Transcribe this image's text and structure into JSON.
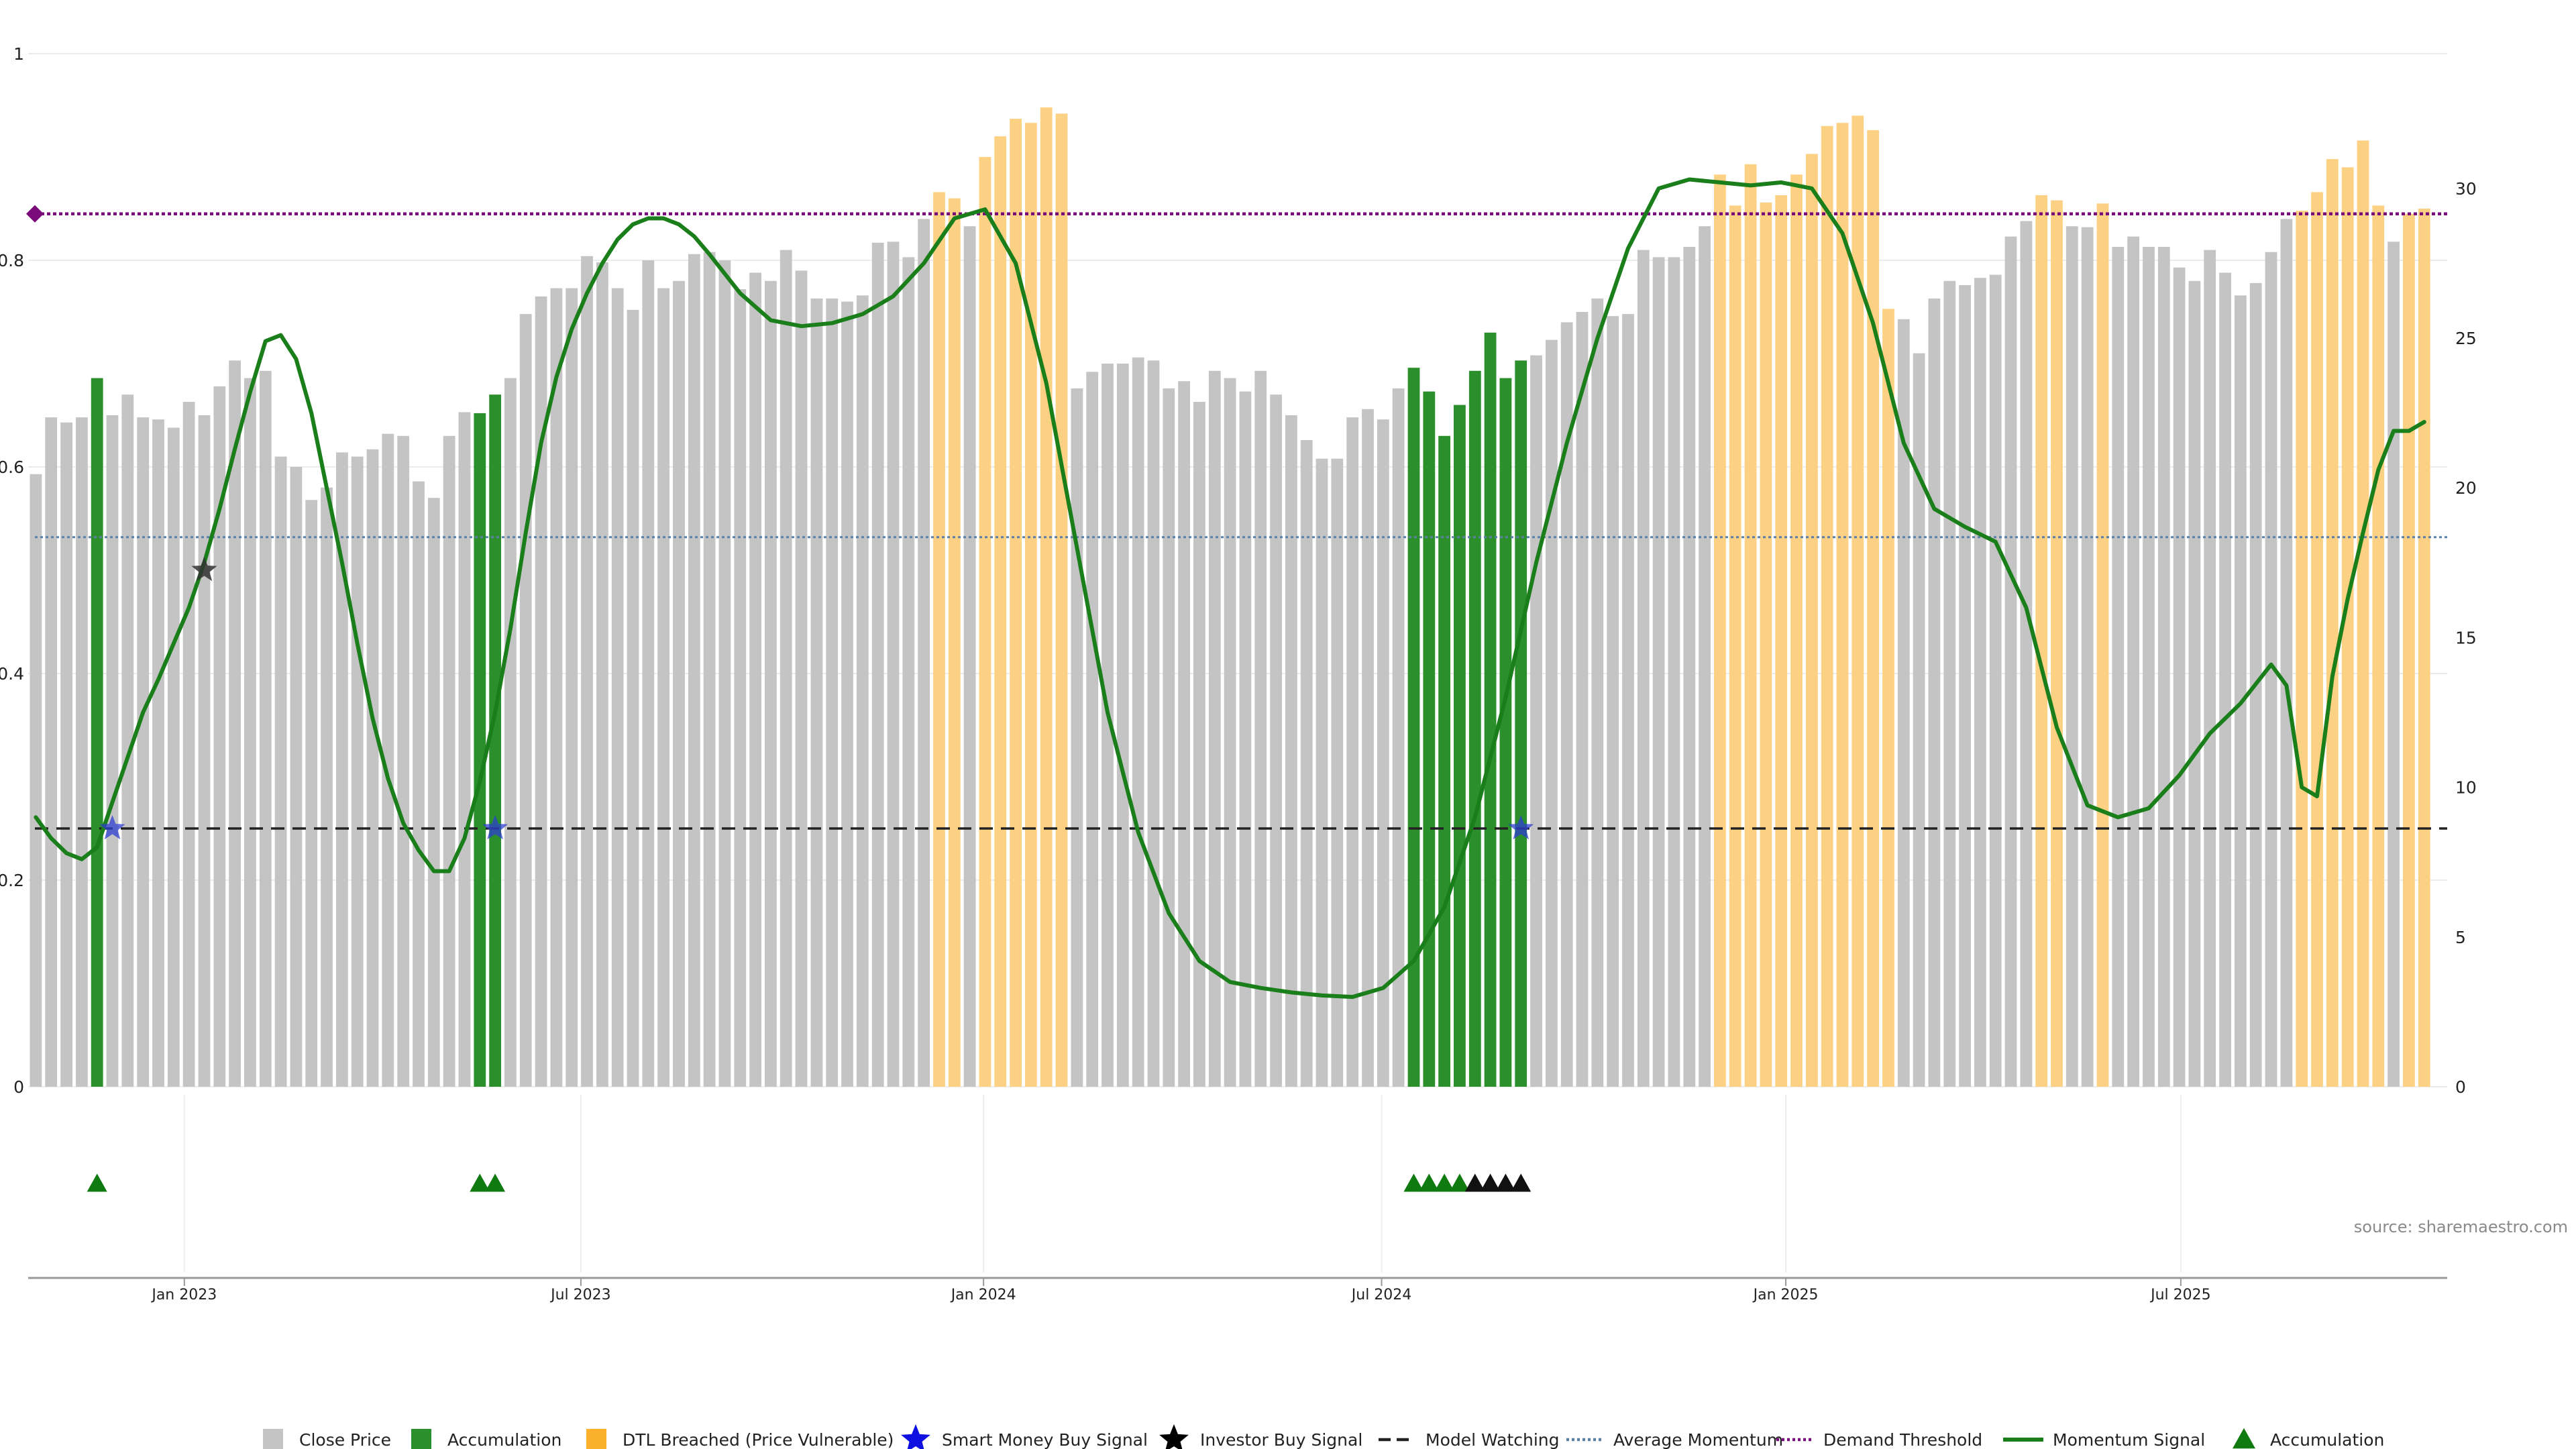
{
  "colors": {
    "close": "#c4c4c4",
    "accumulation": "#2b8f2b",
    "dtl": "#fdd183",
    "dtl_legend": "#fbb12b",
    "signal_line": "#1a7f1a",
    "avg_momentum": "#5a7fa8",
    "demand": "#7a0a7a",
    "watching": "#222222",
    "smart_star": "#2f3fd0",
    "investor_star": "#333333",
    "marker_green": "#0f7a0f",
    "marker_black": "#111111"
  },
  "chart_data": {
    "type": "bar",
    "source": "source: sharemaestro.com",
    "left_axis": {
      "ylim": [
        0,
        1
      ],
      "ticks": [
        "0",
        "0.2",
        "0.4",
        "0.6",
        "0.8",
        "1"
      ]
    },
    "right_axis": {
      "ylim": [
        0,
        34.5
      ],
      "ticks": [
        "0",
        "5",
        "10",
        "15",
        "20",
        "25",
        "30"
      ]
    },
    "x_ticks": [
      "Jan 2023",
      "Jul 2023",
      "Jan 2024",
      "Jul 2024",
      "Jan 2025",
      "Jul 2025"
    ],
    "x_tick_weeks": [
      9.7,
      35.6,
      61.9,
      87.9,
      114.3,
      140.1
    ],
    "series": [
      {
        "name": "Close Price",
        "kind": "bars",
        "values": [
          0.593,
          0.648,
          0.643,
          0.648,
          0.686,
          0.65,
          0.67,
          0.648,
          0.646,
          0.638,
          0.663,
          0.65,
          0.678,
          0.703,
          0.686,
          0.693,
          0.61,
          0.6,
          0.568,
          0.58,
          0.614,
          0.61,
          0.617,
          0.632,
          0.63,
          0.586,
          0.57,
          0.63,
          0.653,
          0.652,
          0.67,
          0.686,
          0.748,
          0.765,
          0.773,
          0.773,
          0.804,
          0.798,
          0.773,
          0.752,
          0.8,
          0.773,
          0.78,
          0.806,
          0.808,
          0.8,
          0.772,
          0.788,
          0.78,
          0.81,
          0.79,
          0.763,
          0.763,
          0.76,
          0.766,
          0.817,
          0.818,
          0.803,
          0.84,
          0.866,
          0.86,
          0.833,
          0.9,
          0.92,
          0.937,
          0.933,
          0.948,
          0.942,
          0.676,
          0.692,
          0.7,
          0.7,
          0.706,
          0.703,
          0.676,
          0.683,
          0.663,
          0.693,
          0.686,
          0.673,
          0.693,
          0.67,
          0.65,
          0.626,
          0.608,
          0.608,
          0.648,
          0.656,
          0.646,
          0.676,
          0.696,
          0.673,
          0.63,
          0.66,
          0.693,
          0.73,
          0.686,
          0.703,
          0.708,
          0.723,
          0.74,
          0.75,
          0.763,
          0.746,
          0.748,
          0.81,
          0.803,
          0.803,
          0.813,
          0.833,
          0.883,
          0.853,
          0.893,
          0.856,
          0.863,
          0.883,
          0.903,
          0.93,
          0.933,
          0.94,
          0.926,
          0.753,
          0.743,
          0.71,
          0.763,
          0.78,
          0.776,
          0.783,
          0.786,
          0.823,
          0.838,
          0.863,
          0.858,
          0.833,
          0.832,
          0.855,
          0.813,
          0.823,
          0.813,
          0.813,
          0.793,
          0.78,
          0.81,
          0.788,
          0.766,
          0.778,
          0.808,
          0.84,
          0.848,
          0.866,
          0.898,
          0.89,
          0.916,
          0.853,
          0.818,
          0.845,
          0.85
        ]
      },
      {
        "name": "Accumulation",
        "kind": "bar-highlight",
        "indices": [
          4,
          29,
          30,
          90,
          91,
          92,
          93,
          94,
          95,
          96,
          97
        ]
      },
      {
        "name": "DTL Breached (Price Vulnerable)",
        "kind": "bar-highlight",
        "indices": [
          59,
          60,
          62,
          63,
          64,
          65,
          66,
          67,
          110,
          111,
          112,
          113,
          114,
          115,
          116,
          117,
          118,
          119,
          120,
          121,
          131,
          132,
          135,
          148,
          149,
          150,
          151,
          152,
          153,
          155,
          156
        ]
      },
      {
        "name": "Momentum Signal",
        "kind": "line-right-axis",
        "x": [
          0,
          1,
          2,
          3,
          4,
          5,
          6,
          7,
          8,
          9,
          10,
          11,
          12,
          13,
          14,
          15,
          16,
          17,
          18,
          19,
          20,
          21,
          22,
          23,
          24,
          25,
          26,
          27,
          28,
          29,
          30,
          31,
          32,
          33,
          34,
          35,
          36,
          37,
          38,
          39,
          40,
          41,
          42,
          43,
          44,
          46,
          48,
          50,
          52,
          54,
          56,
          58,
          60,
          62,
          64,
          66,
          68,
          70,
          72,
          74,
          76,
          78,
          80,
          82,
          84,
          86,
          88,
          90,
          92,
          94,
          96,
          98,
          100,
          102,
          104,
          106,
          108,
          110,
          112,
          114,
          116,
          118,
          120,
          122,
          124,
          126,
          128,
          130,
          132,
          134,
          136,
          138,
          140,
          142,
          144,
          146,
          147,
          148,
          149,
          150,
          151,
          152,
          153,
          154,
          155,
          156
        ],
        "values": [
          9.0,
          8.3,
          7.8,
          7.6,
          8.0,
          9.5,
          11.0,
          12.5,
          13.6,
          14.8,
          16.0,
          17.5,
          19.3,
          21.3,
          23.2,
          24.9,
          25.1,
          24.3,
          22.5,
          20.0,
          17.5,
          14.8,
          12.3,
          10.3,
          8.8,
          7.9,
          7.2,
          7.2,
          8.3,
          10.2,
          12.5,
          15.3,
          18.5,
          21.5,
          23.7,
          25.3,
          26.5,
          27.5,
          28.3,
          28.8,
          29.0,
          29.0,
          28.8,
          28.4,
          27.8,
          26.5,
          25.6,
          25.4,
          25.5,
          25.8,
          26.4,
          27.5,
          29.0,
          29.3,
          27.5,
          23.5,
          18.0,
          12.5,
          8.5,
          5.8,
          4.2,
          3.5,
          3.3,
          3.15,
          3.05,
          3.0,
          3.3,
          4.2,
          6.0,
          9.0,
          13.0,
          17.5,
          21.5,
          25.0,
          28.0,
          30.0,
          30.3,
          30.2,
          30.1,
          30.2,
          30.0,
          28.5,
          25.5,
          21.5,
          19.3,
          18.7,
          18.2,
          16.0,
          12.0,
          9.4,
          9.0,
          9.3,
          10.4,
          11.8,
          12.8,
          14.1,
          13.4,
          10.0,
          9.7,
          13.7,
          16.3,
          18.5,
          20.6,
          21.9,
          21.9,
          22.2
        ]
      },
      {
        "name": "Smart Money Buy Signal",
        "kind": "star-markers",
        "points": [
          [
            5,
            0.25
          ],
          [
            30,
            0.25
          ],
          [
            97,
            0.25
          ]
        ]
      },
      {
        "name": "Investor Buy Signal",
        "kind": "star-markers",
        "points": [
          [
            11,
            0.5
          ]
        ]
      },
      {
        "name": "Accumulation",
        "kind": "triangle-markers",
        "green_indices": [
          4,
          29,
          30,
          90,
          91,
          92,
          93
        ],
        "black_indices": [
          94,
          95,
          96,
          97
        ]
      }
    ],
    "reference_lines": {
      "model_watching": 0.25,
      "average_momentum": 0.532,
      "demand_threshold": 0.845
    },
    "legend": [
      {
        "label": "Close Price",
        "swatch": "square",
        "color": "#c4c4c4"
      },
      {
        "label": "Accumulation",
        "swatch": "square",
        "color": "#2b8f2b"
      },
      {
        "label": "DTL Breached (Price Vulnerable)",
        "swatch": "square",
        "color": "#fbb12b"
      },
      {
        "label": "Smart Money Buy Signal",
        "swatch": "star",
        "color": "#1010e0"
      },
      {
        "label": "Investor Buy Signal",
        "swatch": "star",
        "color": "#000000"
      },
      {
        "label": "Model Watching",
        "swatch": "dash",
        "color": "#222222"
      },
      {
        "label": "Average Momentum",
        "swatch": "dot",
        "color": "#5a7fa8"
      },
      {
        "label": "Demand Threshold",
        "swatch": "dot",
        "color": "#7a0a7a"
      },
      {
        "label": "Momentum Signal",
        "swatch": "line",
        "color": "#1a7f1a"
      },
      {
        "label": "Accumulation",
        "swatch": "triangle",
        "color": "#0f7a0f"
      }
    ]
  }
}
